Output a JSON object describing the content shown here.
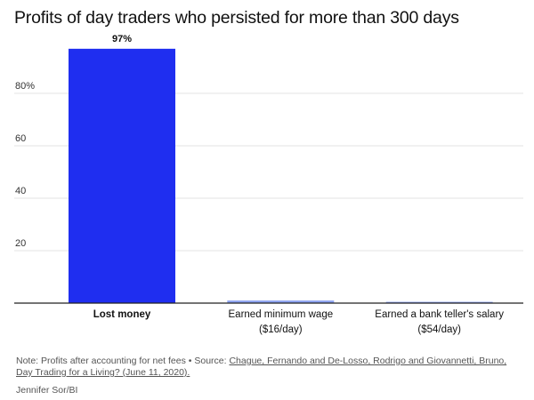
{
  "chart_data": {
    "type": "bar",
    "title": "Profits of day traders who persisted for more than 300 days",
    "categories": [
      [
        "Lost money"
      ],
      [
        "Earned minimum wage",
        "($16/day)"
      ],
      [
        "Earned a bank teller's salary",
        "($54/day)"
      ]
    ],
    "values": [
      97,
      1,
      0.5
    ],
    "value_labels": [
      "97%",
      "",
      ""
    ],
    "yticks": [
      "20",
      "40",
      "60",
      "80%"
    ],
    "ytick_values": [
      20,
      40,
      60,
      80
    ],
    "ylim": [
      0,
      100
    ],
    "xlabel": "",
    "ylabel": "",
    "grid": true,
    "colors": [
      "#1f2ef0",
      "#8fa4f0",
      "#8fa4f0"
    ]
  },
  "footer": {
    "note_prefix": "Note: Profits after accounting for net fees • Source: ",
    "note_source": "Chague, Fernando and De-Losso, Rodrigo and Giovannetti, Bruno, Day Trading for a Living? (June 11, 2020).",
    "credit": "Jennifer Sor/BI"
  }
}
